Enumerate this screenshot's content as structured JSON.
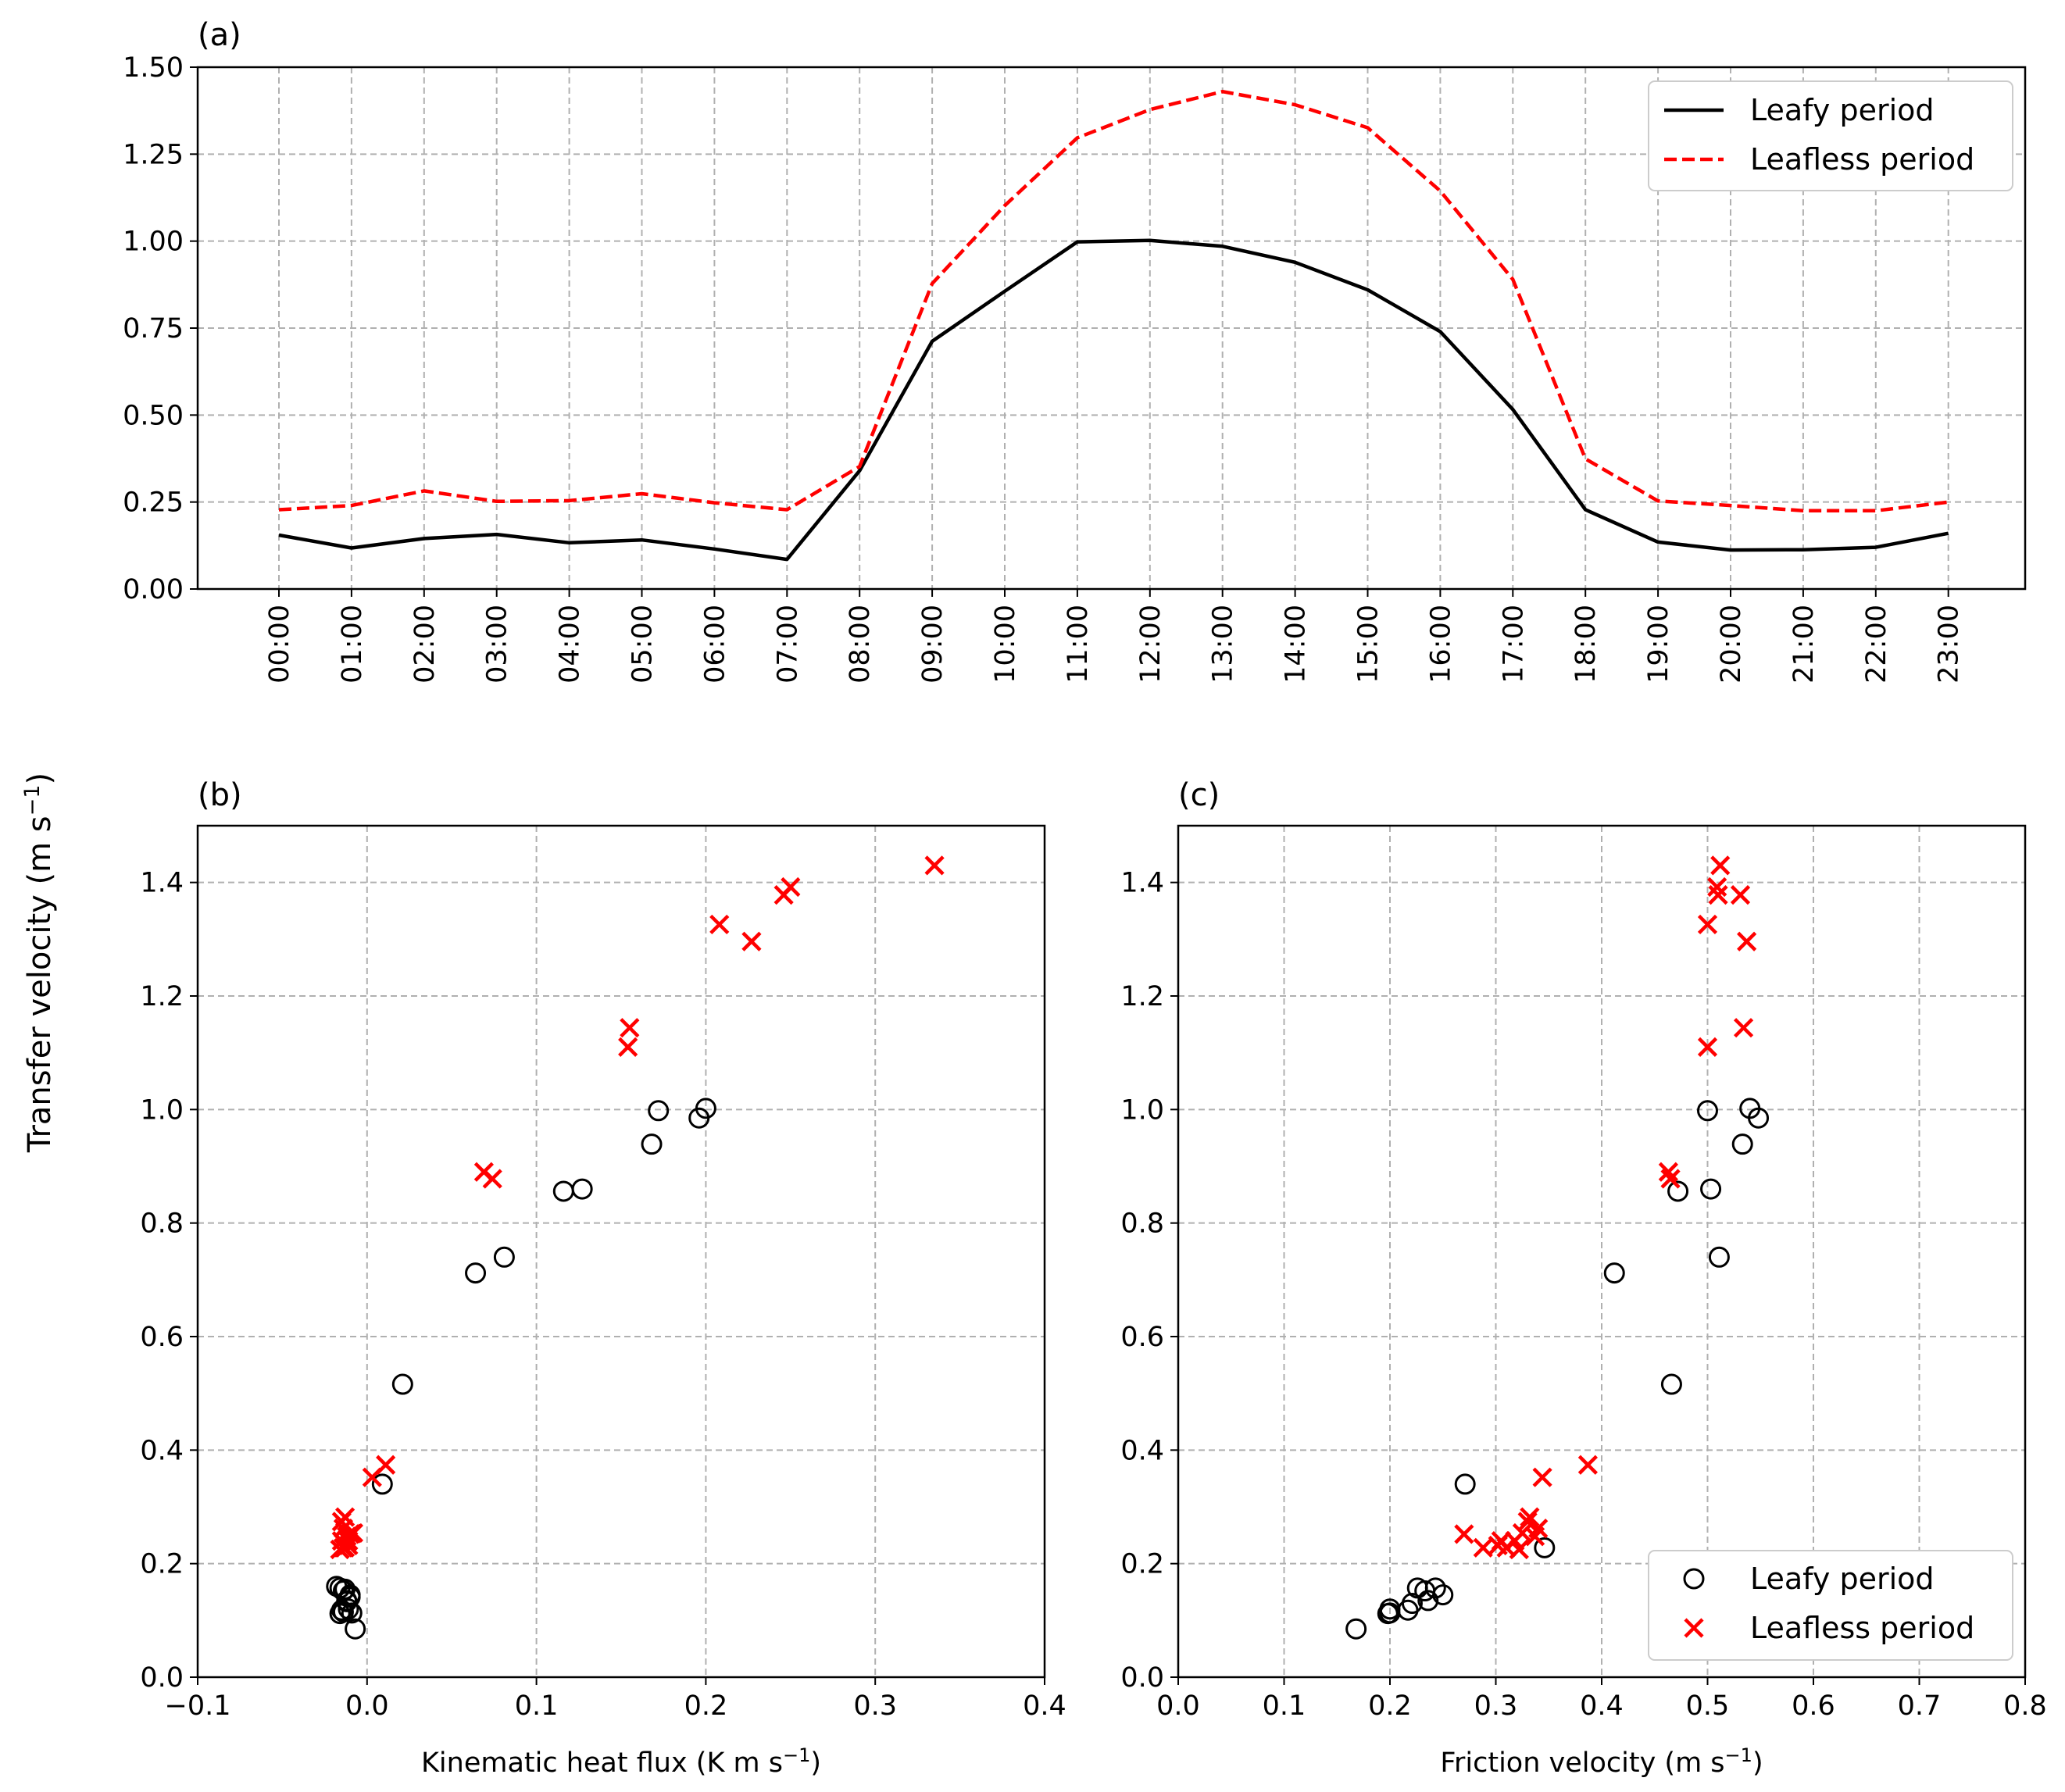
{
  "figure": {
    "shared_ylabel": "Transfer velocity (m s",
    "shared_ylabel_sup": "−1",
    "shared_ylabel_end": ")"
  },
  "colors": {
    "leafy": "#000000",
    "leafless": "#ff0000",
    "grid": "#b0b0b0"
  },
  "chart_data": [
    {
      "panel": "(a)",
      "type": "line",
      "categories": [
        "00:00",
        "01:00",
        "02:00",
        "03:00",
        "04:00",
        "05:00",
        "06:00",
        "07:00",
        "08:00",
        "09:00",
        "10:00",
        "11:00",
        "12:00",
        "13:00",
        "14:00",
        "15:00",
        "16:00",
        "17:00",
        "18:00",
        "19:00",
        "20:00",
        "21:00",
        "22:00",
        "23:00"
      ],
      "ylim": [
        0,
        1.5
      ],
      "yticks": [
        "0.00",
        "0.25",
        "0.50",
        "0.75",
        "1.00",
        "1.25",
        "1.50"
      ],
      "grid": true,
      "legend": "top-right",
      "series": [
        {
          "name": "Leafy period",
          "style": "solid",
          "color": "#000000",
          "values": [
            0.155,
            0.118,
            0.145,
            0.157,
            0.133,
            0.141,
            0.115,
            0.085,
            0.34,
            0.712,
            0.856,
            0.998,
            1.002,
            0.985,
            0.939,
            0.86,
            0.74,
            0.516,
            0.228,
            0.135,
            0.112,
            0.113,
            0.12,
            0.16
          ]
        },
        {
          "name": "Leafless period",
          "style": "dashed",
          "color": "#ff0000",
          "values": [
            0.228,
            0.24,
            0.282,
            0.252,
            0.254,
            0.274,
            0.248,
            0.228,
            0.352,
            0.878,
            1.102,
            1.297,
            1.378,
            1.43,
            1.392,
            1.326,
            1.144,
            0.89,
            0.374,
            0.253,
            0.24,
            0.225,
            0.225,
            0.25
          ]
        }
      ]
    },
    {
      "panel": "(b)",
      "type": "scatter",
      "xlabel": "Kinematic heat flux (K m s",
      "xlabel_sup": "−1",
      "xlabel_end": ")",
      "xlim": [
        -0.1,
        0.4
      ],
      "ylim": [
        0,
        1.5
      ],
      "xticks": [
        "−0.1",
        "0.0",
        "0.1",
        "0.2",
        "0.3",
        "0.4"
      ],
      "yticks": [
        "0.0",
        "0.2",
        "0.4",
        "0.6",
        "0.8",
        "1.0",
        "1.2",
        "1.4"
      ],
      "grid": true,
      "series": [
        {
          "name": "Leafy period",
          "marker": "circle",
          "color": "#000000",
          "points": [
            [
              -0.013,
              0.155
            ],
            [
              -0.015,
              0.118
            ],
            [
              -0.01,
              0.145
            ],
            [
              -0.016,
              0.157
            ],
            [
              -0.012,
              0.133
            ],
            [
              -0.01,
              0.141
            ],
            [
              -0.014,
              0.115
            ],
            [
              -0.007,
              0.085
            ],
            [
              0.009,
              0.34
            ],
            [
              0.064,
              0.712
            ],
            [
              0.116,
              0.856
            ],
            [
              0.172,
              0.998
            ],
            [
              0.2,
              1.002
            ],
            [
              0.196,
              0.985
            ],
            [
              0.168,
              0.939
            ],
            [
              0.127,
              0.86
            ],
            [
              0.081,
              0.74
            ],
            [
              0.021,
              0.516
            ],
            [
              -0.018,
              0.16
            ],
            [
              -0.012,
              0.135
            ],
            [
              -0.016,
              0.112
            ],
            [
              -0.009,
              0.113
            ],
            [
              -0.011,
              0.12
            ],
            [
              -0.014,
              0.152
            ]
          ]
        },
        {
          "name": "Leafless period",
          "marker": "x",
          "color": "#ff0000",
          "points": [
            [
              -0.013,
              0.228
            ],
            [
              -0.011,
              0.24
            ],
            [
              -0.013,
              0.282
            ],
            [
              -0.01,
              0.252
            ],
            [
              -0.008,
              0.254
            ],
            [
              -0.015,
              0.274
            ],
            [
              -0.012,
              0.248
            ],
            [
              -0.014,
              0.228
            ],
            [
              0.003,
              0.352
            ],
            [
              0.069,
              0.89
            ],
            [
              0.154,
              1.11
            ],
            [
              0.208,
              1.326
            ],
            [
              0.246,
              1.378
            ],
            [
              0.335,
              1.43
            ],
            [
              0.25,
              1.392
            ],
            [
              0.227,
              1.296
            ],
            [
              0.155,
              1.144
            ],
            [
              0.074,
              0.878
            ],
            [
              0.011,
              0.374
            ],
            [
              -0.009,
              0.253
            ],
            [
              -0.015,
              0.24
            ],
            [
              -0.016,
              0.225
            ],
            [
              -0.011,
              0.232
            ],
            [
              -0.014,
              0.262
            ]
          ]
        }
      ]
    },
    {
      "panel": "(c)",
      "type": "scatter",
      "xlabel": "Friction velocity (m s",
      "xlabel_sup": "−1",
      "xlabel_end": ")",
      "xlim": [
        0.0,
        0.8
      ],
      "ylim": [
        0,
        1.5
      ],
      "xticks": [
        "0.0",
        "0.1",
        "0.2",
        "0.3",
        "0.4",
        "0.5",
        "0.6",
        "0.7",
        "0.8"
      ],
      "yticks": [
        "0.0",
        "0.2",
        "0.4",
        "0.6",
        "0.8",
        "1.0",
        "1.2",
        "1.4"
      ],
      "grid": true,
      "legend": "bottom-right",
      "series": [
        {
          "name": "Leafy period",
          "marker": "circle",
          "color": "#000000",
          "points": [
            [
              0.168,
              0.085
            ],
            [
              0.198,
              0.112
            ],
            [
              0.2,
              0.12
            ],
            [
              0.217,
              0.118
            ],
            [
              0.221,
              0.13
            ],
            [
              0.226,
              0.157
            ],
            [
              0.236,
              0.135
            ],
            [
              0.243,
              0.157
            ],
            [
              0.233,
              0.152
            ],
            [
              0.25,
              0.145
            ],
            [
              0.2,
              0.113
            ],
            [
              0.271,
              0.34
            ],
            [
              0.346,
              0.228
            ],
            [
              0.412,
              0.712
            ],
            [
              0.466,
              0.516
            ],
            [
              0.472,
              0.856
            ],
            [
              0.5,
              0.998
            ],
            [
              0.503,
              0.86
            ],
            [
              0.511,
              0.74
            ],
            [
              0.533,
              0.939
            ],
            [
              0.54,
              1.002
            ],
            [
              0.548,
              0.985
            ]
          ]
        },
        {
          "name": "Leafless period",
          "marker": "x",
          "color": "#ff0000",
          "points": [
            [
              0.27,
              0.252
            ],
            [
              0.288,
              0.228
            ],
            [
              0.305,
              0.24
            ],
            [
              0.31,
              0.228
            ],
            [
              0.318,
              0.24
            ],
            [
              0.322,
              0.225
            ],
            [
              0.325,
              0.254
            ],
            [
              0.33,
              0.274
            ],
            [
              0.332,
              0.282
            ],
            [
              0.337,
              0.248
            ],
            [
              0.34,
              0.262
            ],
            [
              0.344,
              0.352
            ],
            [
              0.387,
              0.374
            ],
            [
              0.463,
              0.89
            ],
            [
              0.465,
              0.878
            ],
            [
              0.5,
              1.326
            ],
            [
              0.5,
              1.11
            ],
            [
              0.509,
              1.392
            ],
            [
              0.51,
              1.378
            ],
            [
              0.512,
              1.43
            ],
            [
              0.531,
              1.378
            ],
            [
              0.534,
              1.144
            ],
            [
              0.537,
              1.296
            ],
            [
              0.302,
              0.232
            ]
          ]
        }
      ]
    }
  ]
}
